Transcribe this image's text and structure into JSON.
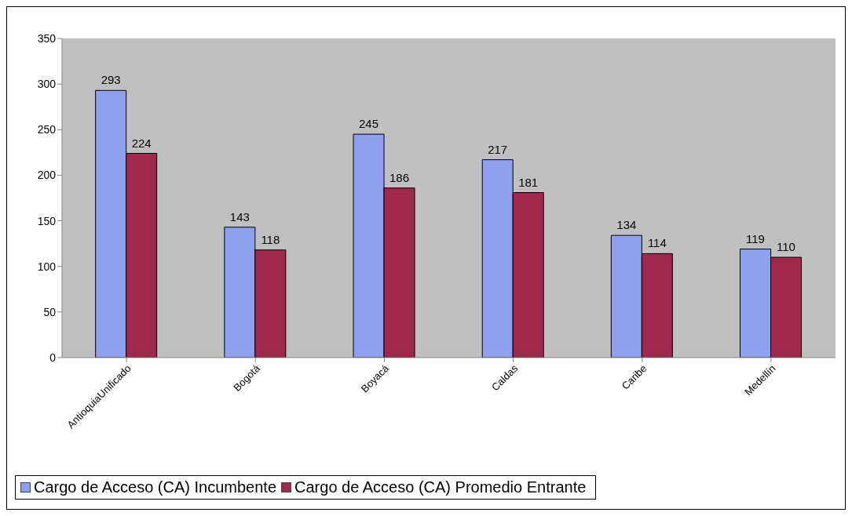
{
  "chart_data": {
    "type": "bar",
    "categories": [
      "AntioquiaUnificado",
      "Bogotá",
      "Boyacá",
      "Caldas",
      "Caribe",
      "Medellín"
    ],
    "series": [
      {
        "name": "Cargo de Acceso (CA) Incumbente",
        "color": "#8fa0ef",
        "values": [
          293,
          143,
          245,
          217,
          134,
          119
        ]
      },
      {
        "name": "Cargo de Acceso (CA) Promedio Entrante",
        "color": "#a0284c",
        "values": [
          224,
          118,
          186,
          181,
          114,
          110
        ]
      }
    ],
    "ylim": [
      0,
      350
    ],
    "yticks": [
      0,
      50,
      100,
      150,
      200,
      250,
      300,
      350
    ],
    "grid": false,
    "legend": "bottom",
    "data_labels": true
  }
}
